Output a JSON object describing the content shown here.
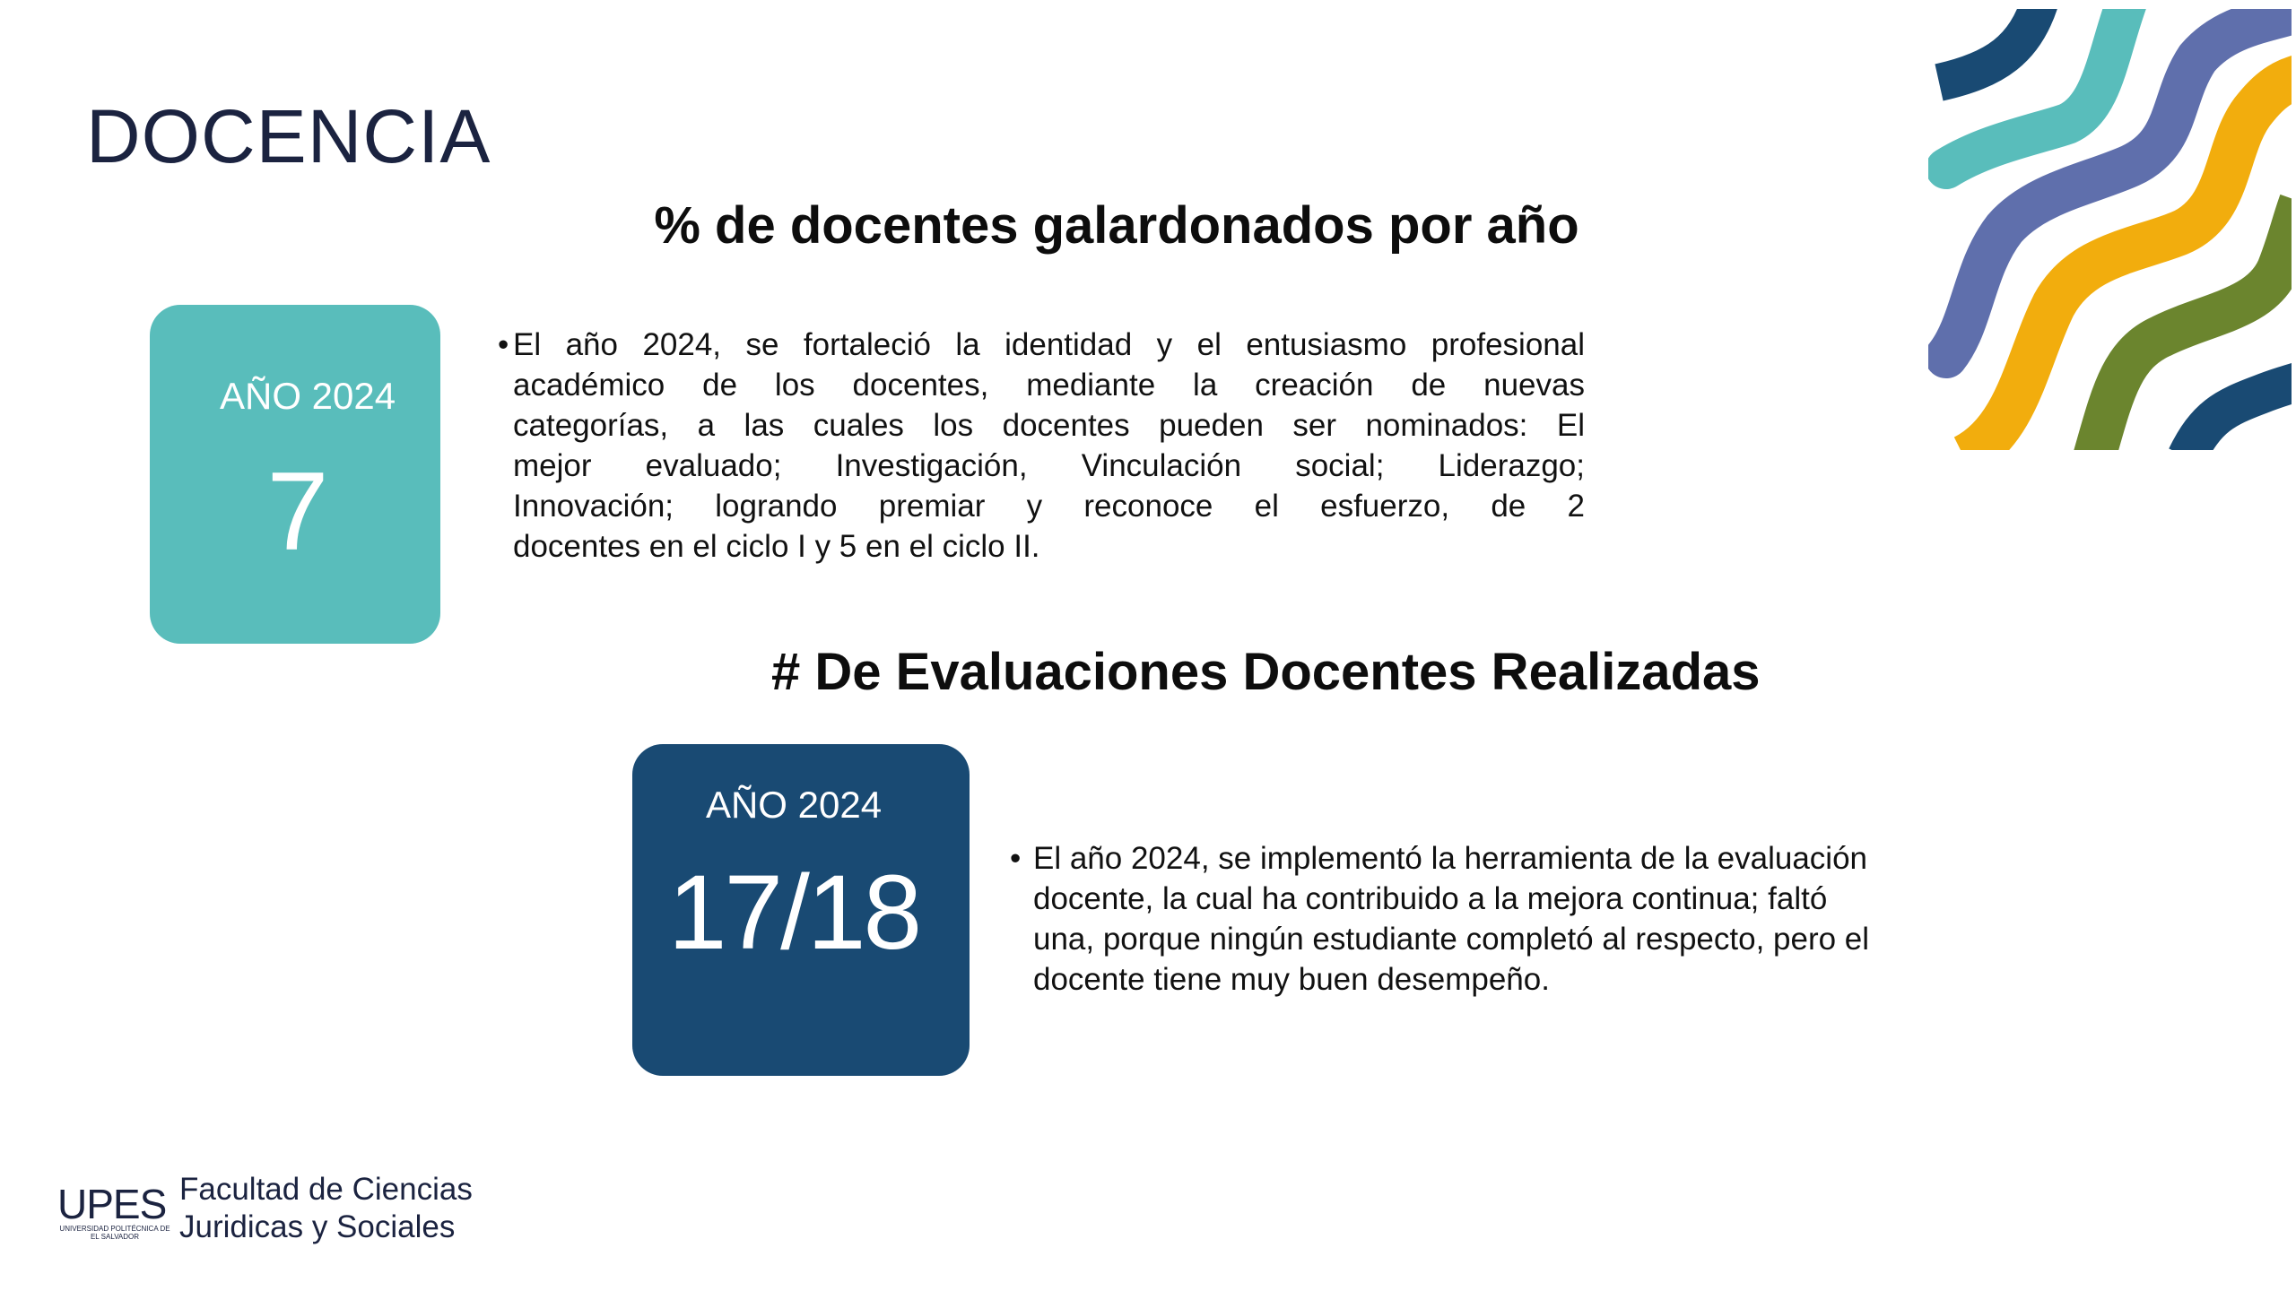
{
  "title": "DOCENCIA",
  "section1": {
    "heading": "% de docentes galardonados por año",
    "card": {
      "label": "AÑO 2024",
      "value": "7",
      "color": "#59bdbb"
    },
    "bullet": "•",
    "lines": [
      "El año 2024, se fortaleció la identidad y el entusiasmo profesional",
      "académico de los docentes, mediante la creación de nuevas",
      "categorías, a las cuales los docentes pueden ser nominados: El",
      "mejor evaluado; Investigación, Vinculación social; Liderazgo;",
      "Innovación;  logrando premiar y reconoce el esfuerzo, de 2",
      "docentes en el ciclo I y 5 en el ciclo II."
    ]
  },
  "section2": {
    "heading": "# De Evaluaciones Docentes Realizadas",
    "card": {
      "label": "AÑO 2024",
      "value": "17/18",
      "color": "#194a73"
    },
    "bullet": "•",
    "lines": [
      "El año 2024,  se implementó la herramienta de la evaluación",
      "docente, la cual ha contribuido a la mejora continua; faltó",
      "una, porque ningún estudiante completó al respecto, pero el",
      "docente tiene muy buen desempeño."
    ]
  },
  "footer": {
    "logo_text": "UPES",
    "logo_subtitle": "UNIVERSIDAD POLITÉCNICA DE EL SALVADOR",
    "faculty_line1": "Facultad de Ciencias",
    "faculty_line2": "Juridicas y Sociales"
  },
  "decoration": {
    "colors": [
      "#194a73",
      "#59bdbb",
      "#5f6fac",
      "#f2ad0d",
      "#6b852e",
      "#194a73"
    ]
  }
}
